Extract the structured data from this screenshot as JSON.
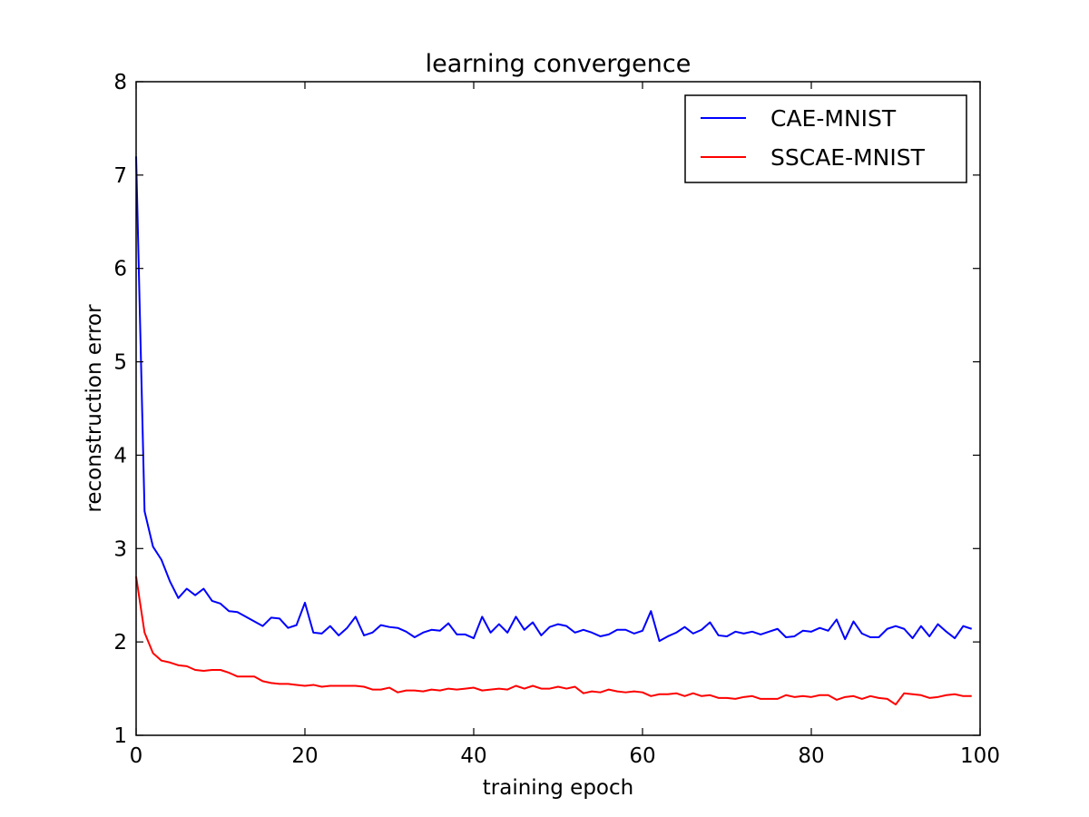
{
  "chart_data": {
    "type": "line",
    "title": "learning convergence",
    "xlabel": "training epoch",
    "ylabel": "reconstruction error",
    "xlim": [
      0,
      100
    ],
    "ylim": [
      1,
      8
    ],
    "xticks": [
      0,
      20,
      40,
      60,
      80,
      100
    ],
    "yticks": [
      1,
      2,
      3,
      4,
      5,
      6,
      7,
      8
    ],
    "xtick_labels": [
      "0",
      "20",
      "40",
      "60",
      "80",
      "100"
    ],
    "ytick_labels": [
      "1",
      "2",
      "3",
      "4",
      "5",
      "6",
      "7",
      "8"
    ],
    "grid": false,
    "legend_position": "top-right",
    "x": [
      0,
      1,
      2,
      3,
      4,
      5,
      6,
      7,
      8,
      9,
      10,
      11,
      12,
      13,
      14,
      15,
      16,
      17,
      18,
      19,
      20,
      21,
      22,
      23,
      24,
      25,
      26,
      27,
      28,
      29,
      30,
      31,
      32,
      33,
      34,
      35,
      36,
      37,
      38,
      39,
      40,
      41,
      42,
      43,
      44,
      45,
      46,
      47,
      48,
      49,
      50,
      51,
      52,
      53,
      54,
      55,
      56,
      57,
      58,
      59,
      60,
      61,
      62,
      63,
      64,
      65,
      66,
      67,
      68,
      69,
      70,
      71,
      72,
      73,
      74,
      75,
      76,
      77,
      78,
      79,
      80,
      81,
      82,
      83,
      84,
      85,
      86,
      87,
      88,
      89,
      90,
      91,
      92,
      93,
      94,
      95,
      96,
      97,
      98,
      99
    ],
    "series": [
      {
        "name": "CAE-MNIST",
        "color": "#0000ff",
        "values": [
          7.2,
          3.4,
          3.02,
          2.88,
          2.65,
          2.47,
          2.57,
          2.5,
          2.57,
          2.44,
          2.41,
          2.33,
          2.32,
          2.27,
          2.22,
          2.17,
          2.26,
          2.25,
          2.15,
          2.18,
          2.42,
          2.1,
          2.09,
          2.17,
          2.07,
          2.15,
          2.27,
          2.07,
          2.1,
          2.18,
          2.16,
          2.15,
          2.11,
          2.05,
          2.1,
          2.13,
          2.12,
          2.2,
          2.08,
          2.08,
          2.04,
          2.27,
          2.1,
          2.19,
          2.1,
          2.27,
          2.13,
          2.21,
          2.07,
          2.16,
          2.19,
          2.17,
          2.1,
          2.13,
          2.1,
          2.06,
          2.08,
          2.13,
          2.13,
          2.09,
          2.12,
          2.33,
          2.01,
          2.06,
          2.1,
          2.16,
          2.09,
          2.13,
          2.21,
          2.07,
          2.06,
          2.11,
          2.09,
          2.11,
          2.08,
          2.11,
          2.14,
          2.05,
          2.06,
          2.12,
          2.11,
          2.15,
          2.12,
          2.24,
          2.03,
          2.22,
          2.09,
          2.05,
          2.05,
          2.14,
          2.17,
          2.14,
          2.04,
          2.17,
          2.06,
          2.19,
          2.11,
          2.04,
          2.17,
          2.14
        ]
      },
      {
        "name": "SSCAE-MNIST",
        "color": "#ff0000",
        "values": [
          2.7,
          2.1,
          1.88,
          1.8,
          1.78,
          1.75,
          1.74,
          1.7,
          1.69,
          1.7,
          1.7,
          1.67,
          1.63,
          1.63,
          1.63,
          1.58,
          1.56,
          1.55,
          1.55,
          1.54,
          1.53,
          1.54,
          1.52,
          1.53,
          1.53,
          1.53,
          1.53,
          1.52,
          1.49,
          1.49,
          1.51,
          1.46,
          1.48,
          1.48,
          1.47,
          1.49,
          1.48,
          1.5,
          1.49,
          1.5,
          1.51,
          1.48,
          1.49,
          1.5,
          1.49,
          1.53,
          1.5,
          1.53,
          1.5,
          1.5,
          1.52,
          1.5,
          1.52,
          1.45,
          1.47,
          1.46,
          1.49,
          1.47,
          1.46,
          1.47,
          1.46,
          1.42,
          1.44,
          1.44,
          1.45,
          1.42,
          1.45,
          1.42,
          1.43,
          1.4,
          1.4,
          1.39,
          1.41,
          1.42,
          1.39,
          1.39,
          1.39,
          1.43,
          1.41,
          1.42,
          1.41,
          1.43,
          1.43,
          1.38,
          1.41,
          1.42,
          1.39,
          1.42,
          1.4,
          1.39,
          1.33,
          1.45,
          1.44,
          1.43,
          1.4,
          1.41,
          1.43,
          1.44,
          1.42,
          1.42
        ]
      }
    ]
  }
}
